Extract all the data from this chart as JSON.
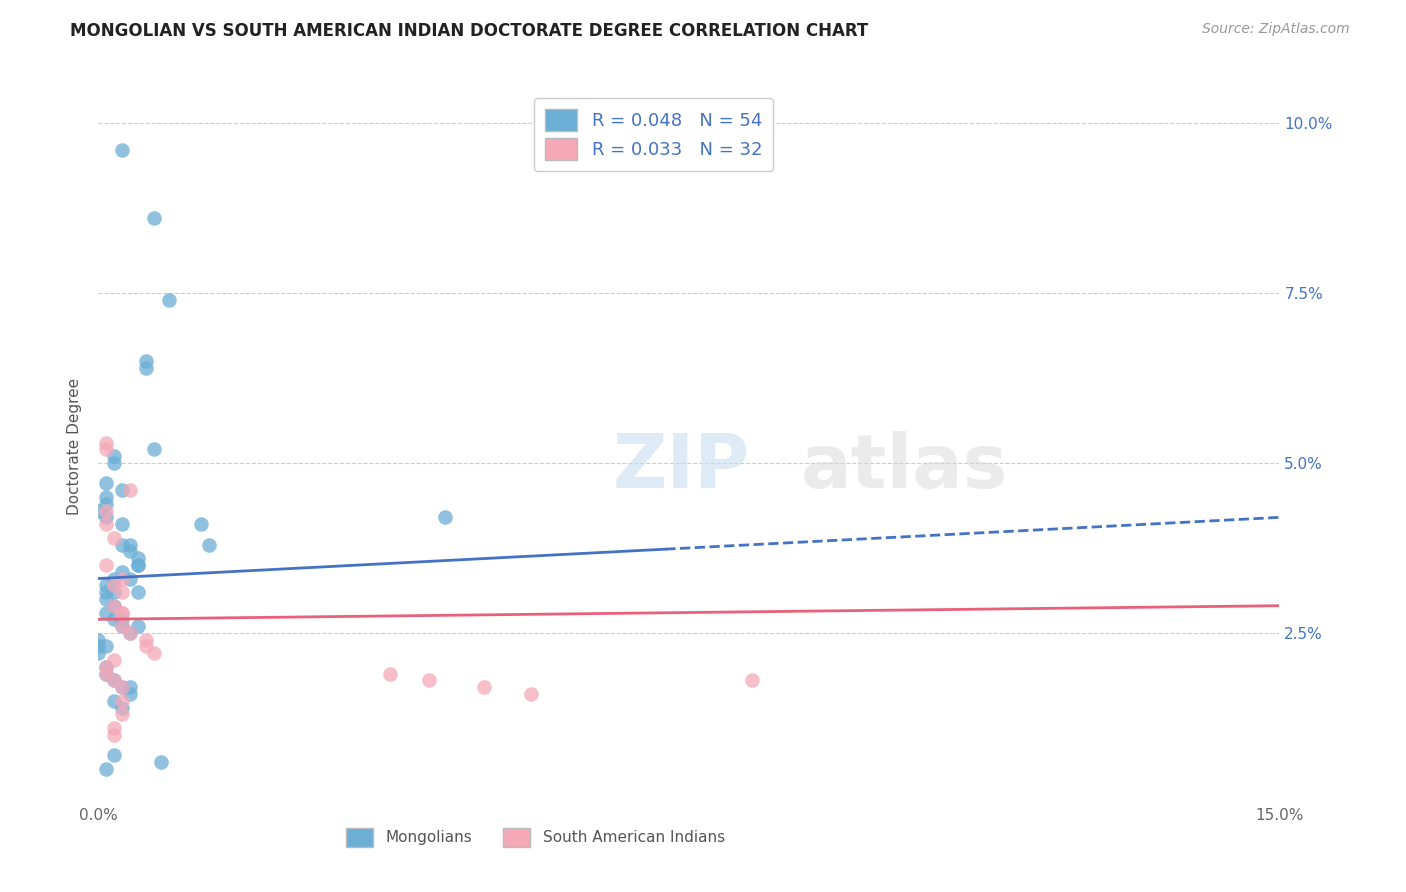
{
  "title": "MONGOLIAN VS SOUTH AMERICAN INDIAN DOCTORATE DEGREE CORRELATION CHART",
  "source": "Source: ZipAtlas.com",
  "ylabel": "Doctorate Degree",
  "xlim": [
    0.0,
    0.15
  ],
  "ylim": [
    0.0,
    0.105
  ],
  "mongolian_R": 0.048,
  "mongolian_N": 54,
  "sai_R": 0.033,
  "sai_N": 32,
  "mongolian_color": "#6baed6",
  "sai_color": "#f4a8b8",
  "trend_mongolian_color": "#4472c4",
  "trend_sai_color": "#e8607a",
  "background_color": "#ffffff",
  "grid_color": "#cccccc",
  "mongolian_x": [
    0.003,
    0.007,
    0.009,
    0.006,
    0.006,
    0.007,
    0.002,
    0.002,
    0.001,
    0.001,
    0.001,
    0.0,
    0.001,
    0.003,
    0.003,
    0.004,
    0.004,
    0.005,
    0.005,
    0.005,
    0.003,
    0.002,
    0.001,
    0.001,
    0.002,
    0.001,
    0.002,
    0.001,
    0.002,
    0.003,
    0.003,
    0.005,
    0.004,
    0.013,
    0.014,
    0.0,
    0.0,
    0.001,
    0.0,
    0.001,
    0.001,
    0.002,
    0.003,
    0.004,
    0.004,
    0.002,
    0.003,
    0.005,
    0.044,
    0.008,
    0.001,
    0.002,
    0.004,
    0.003
  ],
  "mongolian_y": [
    0.096,
    0.086,
    0.074,
    0.065,
    0.064,
    0.052,
    0.051,
    0.05,
    0.047,
    0.045,
    0.044,
    0.043,
    0.042,
    0.041,
    0.038,
    0.038,
    0.037,
    0.036,
    0.035,
    0.035,
    0.034,
    0.033,
    0.032,
    0.031,
    0.031,
    0.03,
    0.029,
    0.028,
    0.027,
    0.027,
    0.026,
    0.026,
    0.025,
    0.041,
    0.038,
    0.024,
    0.023,
    0.023,
    0.022,
    0.02,
    0.019,
    0.018,
    0.017,
    0.017,
    0.016,
    0.015,
    0.014,
    0.031,
    0.042,
    0.006,
    0.005,
    0.007,
    0.033,
    0.046
  ],
  "sai_x": [
    0.001,
    0.001,
    0.004,
    0.001,
    0.001,
    0.002,
    0.001,
    0.003,
    0.002,
    0.003,
    0.002,
    0.003,
    0.003,
    0.004,
    0.006,
    0.006,
    0.007,
    0.002,
    0.001,
    0.001,
    0.002,
    0.003,
    0.037,
    0.042,
    0.049,
    0.055,
    0.003,
    0.003,
    0.002,
    0.002,
    0.083,
    0.003
  ],
  "sai_y": [
    0.053,
    0.052,
    0.046,
    0.043,
    0.041,
    0.039,
    0.035,
    0.033,
    0.032,
    0.031,
    0.029,
    0.028,
    0.026,
    0.025,
    0.024,
    0.023,
    0.022,
    0.021,
    0.02,
    0.019,
    0.018,
    0.017,
    0.019,
    0.018,
    0.017,
    0.016,
    0.015,
    0.013,
    0.011,
    0.01,
    0.018,
    0.028
  ],
  "trend_mongolian_x0": 0.0,
  "trend_mongolian_y0": 0.033,
  "trend_mongolian_x1": 0.15,
  "trend_mongolian_y1": 0.042,
  "trend_mongolian_solid_end": 0.072,
  "trend_mongolian_dashed_start": 0.072,
  "trend_sai_x0": 0.0,
  "trend_sai_y0": 0.027,
  "trend_sai_x1": 0.15,
  "trend_sai_y1": 0.029
}
